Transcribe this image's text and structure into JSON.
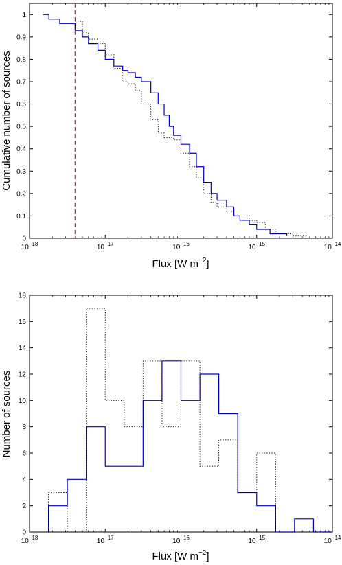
{
  "chart_data": [
    {
      "type": "line",
      "xlabel": "Flux [W m",
      "xlabel_sup": "−2",
      "xlabel_end": "]",
      "ylabel": "Cumulative number of sources",
      "xscale": "log",
      "xlim": [
        1e-18,
        1e-14
      ],
      "ylim": [
        0,
        1.05
      ],
      "x_ticks": [
        {
          "base": "10",
          "exp": "−18"
        },
        {
          "base": "10",
          "exp": "−17"
        },
        {
          "base": "10",
          "exp": "−16"
        },
        {
          "base": "10",
          "exp": "−15"
        },
        {
          "base": "10",
          "exp": "−14"
        }
      ],
      "y_ticks": [
        "0",
        "0.1",
        "0.2",
        "0.3",
        "0.4",
        "0.5",
        "0.6",
        "0.7",
        "0.8",
        "0.9",
        "1"
      ],
      "vline": {
        "x": 4e-18,
        "color": "#d62728",
        "style": "dashed"
      },
      "series": [
        {
          "color": "#0000cc",
          "style": "solid",
          "x": [
            1.5e-18,
            1.8e-18,
            2.5e-18,
            4e-18,
            5e-18,
            6e-18,
            8e-18,
            1e-17,
            1.3e-17,
            1.7e-17,
            2e-17,
            2.5e-17,
            3e-17,
            4e-17,
            5e-17,
            6e-17,
            7e-17,
            8e-17,
            1e-16,
            1.3e-16,
            1.6e-16,
            2e-16,
            2.5e-16,
            3e-16,
            4e-16,
            5e-16,
            6e-16,
            8e-16,
            1e-15,
            1.5e-15,
            2.5e-15
          ],
          "y": [
            1.0,
            0.98,
            0.96,
            0.93,
            0.9,
            0.87,
            0.84,
            0.8,
            0.77,
            0.75,
            0.74,
            0.72,
            0.7,
            0.65,
            0.6,
            0.55,
            0.5,
            0.46,
            0.42,
            0.38,
            0.32,
            0.25,
            0.2,
            0.17,
            0.14,
            0.1,
            0.08,
            0.06,
            0.04,
            0.02,
            0.01
          ]
        },
        {
          "color": "#000000",
          "style": "dotted",
          "x": [
            4e-18,
            5e-18,
            6e-18,
            8e-18,
            1e-17,
            1.3e-17,
            1.7e-17,
            2e-17,
            2.5e-17,
            3e-17,
            4e-17,
            5e-17,
            6e-17,
            8e-17,
            1e-16,
            1.3e-16,
            1.6e-16,
            2e-16,
            2.5e-16,
            3e-16,
            4e-16,
            5e-16,
            8e-16,
            1e-15,
            1.3e-15,
            1.8e-15,
            3e-15,
            4.5e-15
          ],
          "y": [
            0.97,
            0.92,
            0.89,
            0.87,
            0.82,
            0.76,
            0.7,
            0.69,
            0.66,
            0.6,
            0.53,
            0.47,
            0.45,
            0.44,
            0.38,
            0.32,
            0.27,
            0.2,
            0.16,
            0.14,
            0.12,
            0.1,
            0.08,
            0.07,
            0.04,
            0.02,
            0.01,
            0.0
          ]
        }
      ]
    },
    {
      "type": "bar",
      "xlabel": "Flux [W m",
      "xlabel_sup": "−2",
      "xlabel_end": "]",
      "ylabel": "Number of sources",
      "xscale": "log",
      "xlim": [
        1e-18,
        1e-14
      ],
      "ylim": [
        0,
        18
      ],
      "x_ticks": [
        {
          "base": "10",
          "exp": "−18"
        },
        {
          "base": "10",
          "exp": "−17"
        },
        {
          "base": "10",
          "exp": "−16"
        },
        {
          "base": "10",
          "exp": "−15"
        },
        {
          "base": "10",
          "exp": "−14"
        }
      ],
      "y_ticks": [
        "0",
        "2",
        "4",
        "6",
        "8",
        "10",
        "12",
        "14",
        "16",
        "18"
      ],
      "bin_edges": [
        1.78e-18,
        3.16e-18,
        5.62e-18,
        1e-17,
        1.78e-17,
        3.16e-17,
        5.62e-17,
        1e-16,
        1.78e-16,
        3.16e-16,
        5.62e-16,
        1e-15,
        1.78e-15,
        3.16e-15,
        5.62e-15,
        1e-14
      ],
      "series": [
        {
          "color": "#0000cc",
          "style": "solid",
          "values": [
            2,
            4,
            8,
            5,
            5,
            10,
            13,
            10,
            12,
            9,
            3,
            2,
            0,
            1,
            0
          ]
        },
        {
          "color": "#000000",
          "style": "dotted",
          "values": [
            3,
            0,
            17,
            10,
            8,
            13,
            8,
            13,
            5,
            7,
            3,
            6,
            0,
            0,
            0
          ]
        }
      ]
    }
  ]
}
